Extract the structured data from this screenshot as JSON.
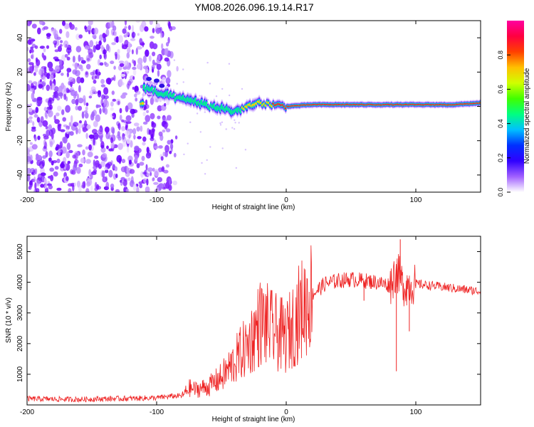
{
  "title": "YM08.2026.096.19.14.R17",
  "chart_data": [
    {
      "type": "heatmap",
      "xlabel": "Height of straight line (km)",
      "ylabel": "Frequency (Hz)",
      "xlim": [
        -200,
        150
      ],
      "ylim": [
        -50,
        50
      ],
      "xticks": [
        -200,
        -100,
        0,
        100
      ],
      "yticks": [
        -40,
        -20,
        0,
        20,
        40
      ],
      "colorbar": {
        "label": "Normalized spectral amplitude",
        "range": [
          0,
          1
        ],
        "ticks": [
          0.0,
          0.2,
          0.4,
          0.6,
          0.8
        ],
        "tick_labels": [
          "0.0",
          "0.2",
          "0.4",
          "0.6",
          "0.8"
        ],
        "colormap": [
          "#ffffff",
          "#a060ff",
          "#3000ff",
          "#0030ff",
          "#00c0ff",
          "#00ff80",
          "#40ff00",
          "#d0ff00",
          "#ffc000",
          "#ff4000",
          "#ff0040",
          "#ff00a0"
        ]
      },
      "noise_region_km": [
        -200,
        -88
      ],
      "doppler_track": [
        {
          "x": -110,
          "y": 11,
          "a": 0.3
        },
        {
          "x": -100,
          "y": 8,
          "a": 0.35
        },
        {
          "x": -90,
          "y": 6,
          "a": 0.4
        },
        {
          "x": -80,
          "y": 4,
          "a": 0.45
        },
        {
          "x": -70,
          "y": 3,
          "a": 0.5
        },
        {
          "x": -60,
          "y": 0,
          "a": 0.55
        },
        {
          "x": -50,
          "y": -1,
          "a": 0.6
        },
        {
          "x": -40,
          "y": -3,
          "a": 0.65
        },
        {
          "x": -30,
          "y": 0,
          "a": 0.75
        },
        {
          "x": -20,
          "y": 2,
          "a": 0.85
        },
        {
          "x": -10,
          "y": 1,
          "a": 0.9
        },
        {
          "x": 0,
          "y": 0,
          "a": 0.95
        },
        {
          "x": 20,
          "y": 1,
          "a": 0.98
        },
        {
          "x": 50,
          "y": 1,
          "a": 1.0
        },
        {
          "x": 80,
          "y": 1,
          "a": 1.0
        },
        {
          "x": 100,
          "y": 1,
          "a": 0.95
        },
        {
          "x": 130,
          "y": 1,
          "a": 0.95
        },
        {
          "x": 150,
          "y": 2,
          "a": 0.9
        }
      ]
    },
    {
      "type": "line",
      "xlabel": "Height of straight line (km)",
      "ylabel": "SNR (10 * v/v)",
      "xlim": [
        -200,
        150
      ],
      "ylim": [
        0,
        5500
      ],
      "xticks": [
        -200,
        -100,
        0,
        100
      ],
      "yticks": [
        1000,
        2000,
        3000,
        4000,
        5000
      ],
      "color": "#ee2222",
      "series": [
        {
          "name": "SNR",
          "x": [
            -200,
            -180,
            -160,
            -140,
            -120,
            -100,
            -90,
            -80,
            -75,
            -70,
            -60,
            -50,
            -40,
            -35,
            -30,
            -25,
            -20,
            -15,
            -10,
            -5,
            0,
            5,
            10,
            20,
            30,
            40,
            50,
            60,
            70,
            80,
            85,
            90,
            100,
            110,
            120,
            130,
            140,
            150
          ],
          "y": [
            200,
            190,
            180,
            200,
            210,
            230,
            280,
            300,
            550,
            500,
            600,
            900,
            1400,
            1700,
            1900,
            2300,
            2700,
            2600,
            2400,
            2300,
            2200,
            2600,
            3000,
            3600,
            3950,
            4050,
            4100,
            4050,
            4000,
            3900,
            4400,
            3900,
            3950,
            3900,
            3850,
            3800,
            3750,
            3700
          ]
        }
      ],
      "spikes": [
        {
          "x": 85,
          "y": 1100
        },
        {
          "x": 88,
          "y": 5400
        },
        {
          "x": 95,
          "y": 2400
        },
        {
          "x": 60,
          "y": 3400
        }
      ]
    }
  ]
}
